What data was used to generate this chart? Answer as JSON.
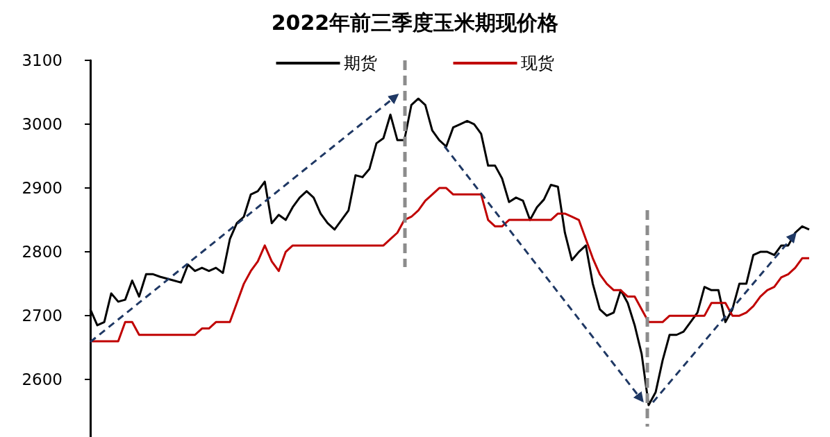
{
  "chart_data": {
    "type": "line",
    "title": "2022年前三季度玉米期现价格",
    "categories": [
      null,
      null,
      null,
      null,
      null,
      null,
      null,
      null,
      null,
      null,
      null,
      null,
      null,
      null,
      null,
      null,
      null,
      null,
      null,
      null,
      null,
      null,
      null,
      null,
      null,
      null,
      null,
      null,
      null,
      null,
      null,
      null,
      null,
      null,
      null,
      null,
      null,
      null,
      null,
      null,
      null,
      null,
      null,
      null,
      null,
      null,
      null,
      null,
      null,
      null,
      null,
      null,
      null,
      null,
      null,
      null,
      null,
      null,
      null,
      null,
      null,
      null,
      null,
      null,
      null,
      null,
      null,
      null,
      null,
      null,
      null,
      null,
      null,
      null,
      null,
      null,
      null,
      null,
      null,
      null,
      null,
      null,
      null,
      null,
      null,
      null,
      null,
      null,
      null,
      null,
      null,
      null,
      null,
      null,
      null,
      null,
      null,
      null,
      null,
      null,
      null,
      null,
      null,
      null
    ],
    "ylim": [
      2510,
      3100
    ],
    "yticks": [
      2600,
      2700,
      2800,
      2900,
      3000,
      3100
    ],
    "tick_labels": "y",
    "grid": false,
    "legend": "top",
    "marker": "none",
    "series": [
      {
        "name": "期货",
        "color": "#000000",
        "values": [
          2710,
          2685,
          2690,
          2735,
          2722,
          2725,
          2755,
          2730,
          2765,
          2765,
          2761,
          2758,
          2755,
          2752,
          2780,
          2770,
          2775,
          2770,
          2775,
          2767,
          2820,
          2845,
          2855,
          2890,
          2895,
          2910,
          2845,
          2858,
          2850,
          2870,
          2885,
          2895,
          2885,
          2860,
          2845,
          2835,
          2850,
          2865,
          2920,
          2917,
          2930,
          2970,
          2978,
          3015,
          2975,
          2975,
          3030,
          3040,
          3030,
          2990,
          2975,
          2965,
          2995,
          3000,
          3005,
          3000,
          2985,
          2935,
          2935,
          2915,
          2878,
          2885,
          2880,
          2850,
          2870,
          2882,
          2905,
          2902,
          2830,
          2787,
          2800,
          2810,
          2750,
          2710,
          2700,
          2705,
          2740,
          2720,
          2685,
          2640,
          2560,
          2580,
          2630,
          2670,
          2670,
          2675,
          2690,
          2705,
          2745,
          2740,
          2740,
          2690,
          2710,
          2750,
          2750,
          2795,
          2800,
          2800,
          2795,
          2810,
          2810,
          2830,
          2840,
          2835
        ]
      },
      {
        "name": "现货",
        "color": "#c00000",
        "values": [
          2660,
          2660,
          2660,
          2660,
          2660,
          2690,
          2690,
          2670,
          2670,
          2670,
          2670,
          2670,
          2670,
          2670,
          2670,
          2670,
          2680,
          2680,
          2690,
          2690,
          2690,
          2720,
          2750,
          2770,
          2785,
          2810,
          2785,
          2770,
          2800,
          2810,
          2810,
          2810,
          2810,
          2810,
          2810,
          2810,
          2810,
          2810,
          2810,
          2810,
          2810,
          2810,
          2810,
          2820,
          2830,
          2850,
          2855,
          2865,
          2880,
          2890,
          2900,
          2900,
          2890,
          2890,
          2890,
          2890,
          2890,
          2850,
          2840,
          2840,
          2850,
          2850,
          2850,
          2850,
          2850,
          2850,
          2850,
          2860,
          2860,
          2855,
          2850,
          2820,
          2790,
          2765,
          2750,
          2740,
          2740,
          2730,
          2730,
          2710,
          2690,
          2690,
          2690,
          2700,
          2700,
          2700,
          2700,
          2700,
          2700,
          2720,
          2720,
          2720,
          2700,
          2700,
          2705,
          2715,
          2730,
          2740,
          2745,
          2760,
          2765,
          2775,
          2790,
          2790
        ]
      }
    ]
  }
}
